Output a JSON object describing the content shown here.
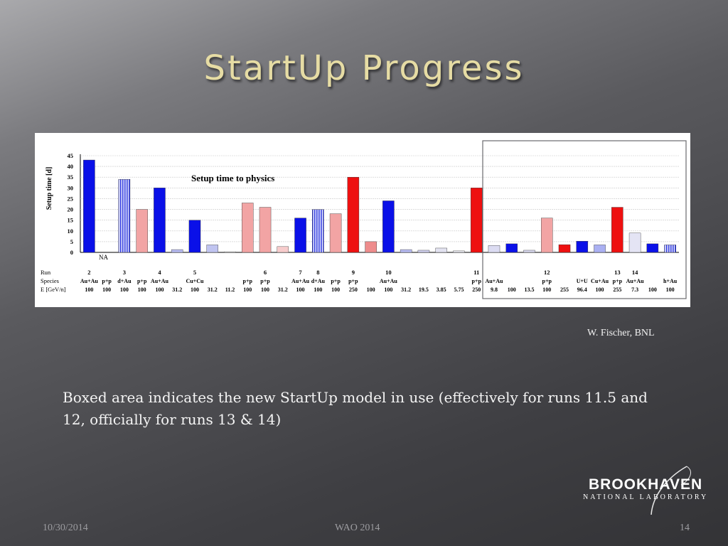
{
  "slide": {
    "title": "StartUp Progress",
    "credit": "W. Fischer, BNL",
    "body": "Boxed area indicates the new StartUp model in use (effectively for runs 11.5 and 12, officially for runs 13 & 14)",
    "footer_date": "10/30/2014",
    "footer_event": "WAO 2014",
    "footer_page": "14",
    "logo_top": "BROOKHAVEN",
    "logo_bottom": "NATIONAL LABORATORY"
  },
  "chart_data": {
    "type": "bar",
    "title": "Setup time to physics",
    "ylabel": "Setup time [d]",
    "ylim": [
      0,
      45
    ],
    "yticks": [
      0,
      5,
      10,
      15,
      20,
      25,
      30,
      35,
      40,
      45
    ],
    "grid": true,
    "row_labels": [
      "Run",
      "Species",
      "E [GeV/n]"
    ],
    "na_label": "NA",
    "values": [
      43,
      0,
      34,
      20,
      30,
      1.3,
      15,
      3.5,
      0.3,
      23,
      21,
      2.7,
      16,
      20,
      18,
      35,
      5,
      24,
      1.3,
      1,
      2,
      0.7,
      30,
      3.2,
      4,
      1,
      16,
      3.6,
      5.2,
      3.5,
      21,
      9,
      4,
      3.5
    ],
    "bar_colors": [
      "#0a10e8",
      "#ffffff",
      "#5a62e8",
      "#f2a4a4",
      "#0a10e8",
      "#b8bcf2",
      "#0a10e8",
      "#c0c4f0",
      "#ffffff",
      "#f2a4a4",
      "#f2a4a4",
      "#f7cccc",
      "#0a10e8",
      "#6a72e8",
      "#f2a4a4",
      "#ee1010",
      "#ee8c8c",
      "#0a10e8",
      "#b8bcf2",
      "#d0d0ee",
      "#e2e2f0",
      "#ececf2",
      "#ee1010",
      "#dcdcf2",
      "#0a10e8",
      "#d8d8ee",
      "#f2a4a4",
      "#ee1010",
      "#0a10e8",
      "#aab0f2",
      "#ee1010",
      "#e4e4f4",
      "#0a10e8",
      "#5a62e8"
    ],
    "bar_hatched": [
      false,
      false,
      true,
      false,
      false,
      false,
      false,
      false,
      false,
      false,
      false,
      false,
      false,
      true,
      false,
      false,
      false,
      false,
      false,
      false,
      false,
      false,
      false,
      false,
      false,
      false,
      false,
      false,
      false,
      false,
      false,
      false,
      false,
      true
    ],
    "runs": [
      "2",
      "",
      "3",
      "",
      "4",
      "",
      "5",
      "",
      "",
      "",
      "6",
      "",
      "7",
      "8",
      "",
      "9",
      "",
      "10",
      "",
      "",
      "",
      "",
      "11",
      "",
      "",
      "",
      "12",
      "",
      "",
      "",
      "13",
      "14",
      "",
      ""
    ],
    "species": [
      "Au+Au",
      "p+p",
      "d+Au",
      "p+p",
      "Au+Au",
      "",
      "Cu+Cu",
      "",
      "",
      "p+p",
      "p+p",
      "",
      "Au+Au",
      "d+Au",
      "p+p",
      "p+p",
      "",
      "Au+Au",
      "",
      "",
      "",
      "",
      "p+p",
      "Au+Au",
      "",
      "",
      "p+p",
      "",
      "U+U",
      "Cu+Au",
      "p+p",
      "Au+Au",
      "",
      "h+Au"
    ],
    "energies": [
      "100",
      "100",
      "100",
      "100",
      "100",
      "31.2",
      "100",
      "31.2",
      "11.2",
      "100",
      "100",
      "31.2",
      "100",
      "100",
      "100",
      "250",
      "100",
      "100",
      "31.2",
      "19.5",
      "3.85",
      "5.75",
      "250",
      "9.8",
      "100",
      "13.5",
      "100",
      "255",
      "96.4",
      "100",
      "255",
      "7.3",
      "100",
      "100"
    ],
    "boxed_region": {
      "from_index": 23,
      "to_index": 33,
      "note": "new StartUp model"
    }
  }
}
